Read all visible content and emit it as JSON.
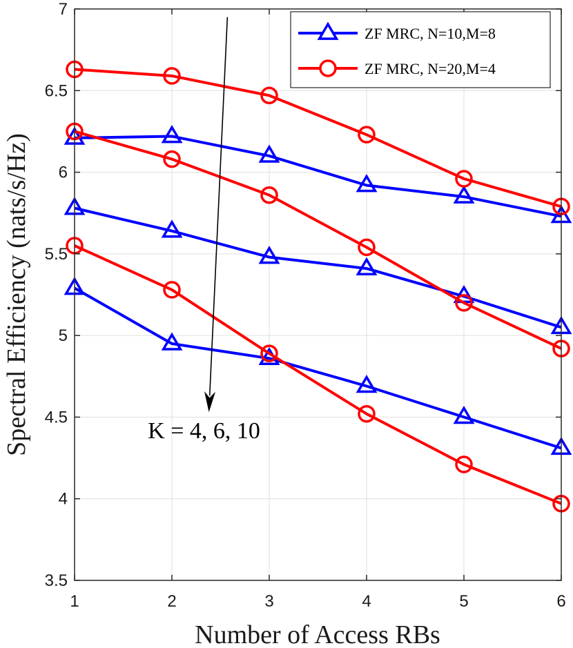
{
  "chart_data": {
    "type": "line",
    "xlabel": "Number of Access RBs",
    "ylabel": "Spectral Efficiency (nats/s/Hz)",
    "x": [
      1,
      2,
      3,
      4,
      5,
      6
    ],
    "xlim": [
      1,
      6
    ],
    "ylim": [
      3.5,
      7
    ],
    "xticks": [
      "1",
      "2",
      "3",
      "4",
      "5",
      "6"
    ],
    "yticks": [
      "3.5",
      "4",
      "4.5",
      "5",
      "5.5",
      "6",
      "6.5",
      "7"
    ],
    "grid": true,
    "legend_position": "top-right",
    "series": [
      {
        "name": "ZF MRC, N=10,M=8",
        "group": "K=4",
        "color": "#0000ff",
        "marker": "triangle",
        "values": [
          6.21,
          6.22,
          6.1,
          5.92,
          5.85,
          5.73
        ]
      },
      {
        "name": "ZF MRC, N=10,M=8",
        "group": "K=6",
        "color": "#0000ff",
        "marker": "triangle",
        "values": [
          5.78,
          5.64,
          5.48,
          5.41,
          5.24,
          5.05
        ]
      },
      {
        "name": "ZF MRC, N=10,M=8",
        "group": "K=10",
        "color": "#0000ff",
        "marker": "triangle",
        "values": [
          5.29,
          4.95,
          4.86,
          4.69,
          4.5,
          4.31
        ]
      },
      {
        "name": "ZF MRC, N=20,M=4",
        "group": "K=4",
        "color": "#ff0000",
        "marker": "circle",
        "values": [
          6.63,
          6.59,
          6.47,
          6.23,
          5.96,
          5.79
        ]
      },
      {
        "name": "ZF MRC, N=20,M=4",
        "group": "K=6",
        "color": "#ff0000",
        "marker": "circle",
        "values": [
          6.25,
          6.08,
          5.86,
          5.54,
          5.2,
          4.92
        ]
      },
      {
        "name": "ZF MRC, N=20,M=4",
        "group": "K=10",
        "color": "#ff0000",
        "marker": "circle",
        "values": [
          5.55,
          5.28,
          4.89,
          4.52,
          4.21,
          3.97
        ]
      }
    ],
    "legend": [
      {
        "label": "ZF MRC, N=10,M=8",
        "color": "#0000ff",
        "marker": "triangle"
      },
      {
        "label": "ZF MRC, N=20,M=4",
        "color": "#ff0000",
        "marker": "circle"
      }
    ],
    "annotation": {
      "text": "K = 4, 6, 10",
      "arrow_from": [
        2.57,
        6.95
      ],
      "arrow_to": [
        2.38,
        4.53
      ],
      "text_at": [
        2.33,
        4.37
      ]
    }
  }
}
